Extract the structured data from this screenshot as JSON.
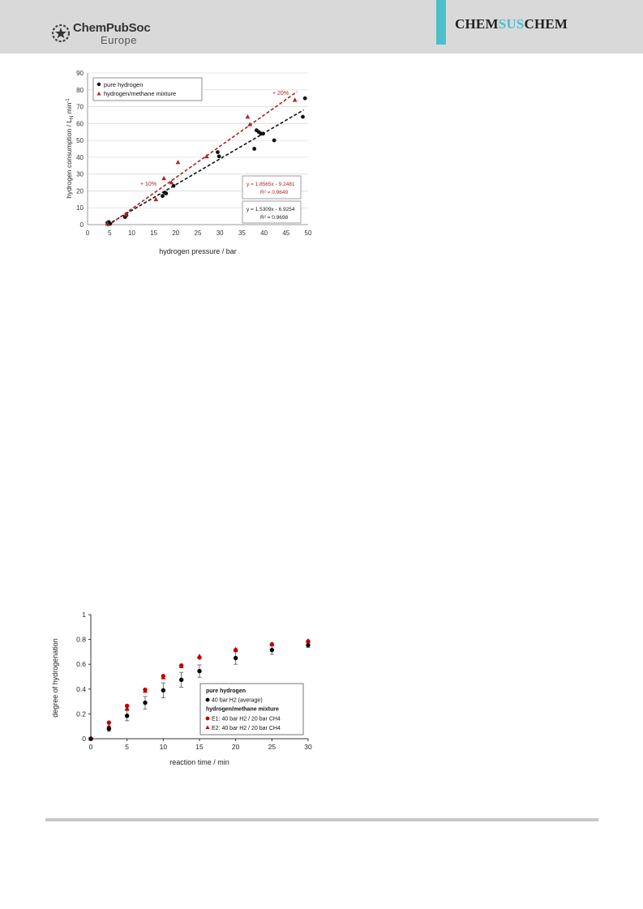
{
  "header": {
    "publisher_name": "ChemPubSoc",
    "publisher_region": "Europe",
    "journal_part1": "CHEM",
    "journal_part2": "SUS",
    "journal_part3": "CHEM",
    "colors": {
      "band": "#d9d9da",
      "accent": "#4dbfca"
    }
  },
  "chart_data": [
    {
      "type": "scatter",
      "xlabel": "hydrogen pressure / bar",
      "ylabel": "hydrogen consumption / L",
      "ylabel_sub": "N",
      "ylabel_tail": " min",
      "ylabel_sup": "-1",
      "xlim": [
        0,
        50
      ],
      "ylim": [
        0,
        90
      ],
      "xticks": [
        0,
        5,
        10,
        15,
        20,
        25,
        30,
        35,
        40,
        45,
        50
      ],
      "yticks": [
        0,
        10,
        20,
        30,
        40,
        50,
        60,
        70,
        80,
        90
      ],
      "grid": true,
      "legend_position": "top-left",
      "series": [
        {
          "name": "pure hydrogen",
          "color": "#111111",
          "marker": "circle",
          "points": [
            [
              4.5,
              1
            ],
            [
              4.8,
              1.5
            ],
            [
              5.1,
              0.5
            ],
            [
              8.5,
              4.5
            ],
            [
              8.8,
              5.5
            ],
            [
              17,
              17
            ],
            [
              17.5,
              19
            ],
            [
              17.8,
              18.5
            ],
            [
              19.5,
              23
            ],
            [
              29.5,
              43
            ],
            [
              29.8,
              40.5
            ],
            [
              37.8,
              45
            ],
            [
              38.3,
              56
            ],
            [
              38.8,
              55
            ],
            [
              39.3,
              54
            ],
            [
              39.8,
              54
            ],
            [
              42.3,
              50
            ],
            [
              48.8,
              64
            ],
            [
              49.3,
              75
            ]
          ],
          "fit": {
            "slope": 1.5309,
            "intercept": -6.9254,
            "x_range": [
              4.5,
              49
            ]
          }
        },
        {
          "name": "hydrogen/methane mixture",
          "color": "#b22222",
          "marker": "triangle",
          "points": [
            [
              4.5,
              0.5
            ],
            [
              8.7,
              6
            ],
            [
              15.5,
              15
            ],
            [
              17.3,
              27.5
            ],
            [
              19,
              25
            ],
            [
              20.5,
              37
            ],
            [
              27,
              40.5
            ],
            [
              36.3,
              64
            ],
            [
              36.8,
              59.5
            ],
            [
              47,
              74
            ]
          ],
          "fit": {
            "slope": 1.8565,
            "intercept": -9.2481,
            "x_range": [
              4.5,
              47.5
            ]
          }
        }
      ],
      "annotations": [
        "+ 10%",
        "+ 20%"
      ],
      "equation_boxes": [
        {
          "eq": "y = 1.8565x - 9.2481",
          "r2": "R² = 0.9649",
          "color": "#b22222"
        },
        {
          "eq": "y = 1.5309x - 6.9254",
          "r2": "R² = 0.9698",
          "color": "#111111"
        }
      ]
    },
    {
      "type": "scatter",
      "xlabel": "reaction time / min",
      "ylabel": "degree of hydrogenation",
      "xlim": [
        0,
        30
      ],
      "ylim": [
        0,
        1
      ],
      "xticks": [
        0,
        5,
        10,
        15,
        20,
        25,
        30
      ],
      "yticks": [
        0,
        0.2,
        0.4,
        0.6,
        0.8,
        1
      ],
      "ytick_labels": [
        "0",
        "0.2",
        "0.4",
        "0.6",
        "0.8",
        "1"
      ],
      "grid": false,
      "legend_position": "bottom-right",
      "legend_group_titles": [
        "pure hydrogen",
        "hydrogen/methane mixture"
      ],
      "series": [
        {
          "name": "40 bar H2 (average)",
          "color": "#000000",
          "marker": "circle",
          "x": [
            0,
            2.5,
            5,
            7.5,
            10,
            12.5,
            15,
            20,
            25,
            30
          ],
          "y": [
            0,
            0.08,
            0.185,
            0.29,
            0.39,
            0.475,
            0.545,
            0.65,
            0.715,
            0.755
          ],
          "err": [
            0,
            0.02,
            0.04,
            0.05,
            0.06,
            0.06,
            0.05,
            0.05,
            0.035,
            0.02
          ]
        },
        {
          "name": "E1: 40 bar H2 / 20 bar CH4",
          "color": "#c00000",
          "marker": "circle",
          "x": [
            0,
            2.5,
            5,
            7.5,
            10,
            12.5,
            15,
            20,
            25,
            30
          ],
          "y": [
            0,
            0.13,
            0.265,
            0.395,
            0.505,
            0.59,
            0.655,
            0.715,
            0.76,
            0.785
          ]
        },
        {
          "name": "E2: 40 bar H2 / 20 bar CH4",
          "color": "#c00000",
          "marker": "triangle",
          "x": [
            0,
            2.5,
            5,
            7.5,
            10,
            12.5,
            15,
            20,
            25,
            30
          ],
          "y": [
            0,
            0.1,
            0.245,
            0.385,
            0.495,
            0.585,
            0.665,
            0.72,
            0.765,
            0.79
          ]
        }
      ]
    }
  ]
}
